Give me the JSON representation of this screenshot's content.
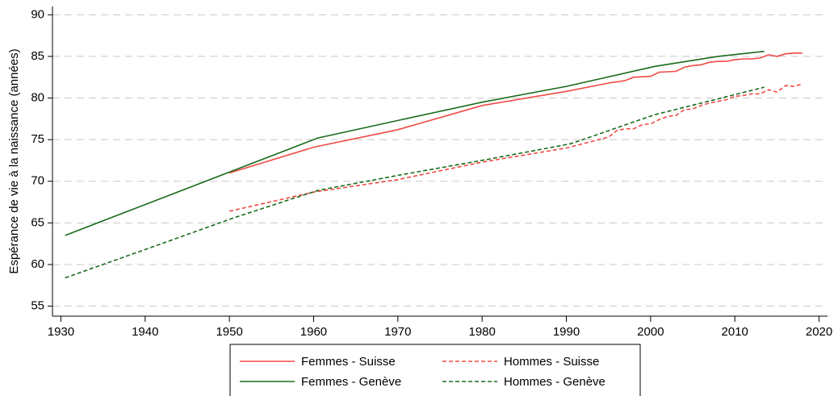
{
  "chart_data": {
    "type": "line",
    "y_label": "Espérance de vie à la naissance (années)",
    "xlim": [
      1929,
      2021
    ],
    "xticks": [
      1930,
      1940,
      1950,
      1960,
      1970,
      1980,
      1990,
      2000,
      2010,
      2020
    ],
    "ylim": [
      53.8,
      91
    ],
    "yticks": [
      55,
      60,
      65,
      70,
      75,
      80,
      85,
      90
    ],
    "grid": true,
    "legend": "bottom",
    "series": [
      {
        "name": "Femmes - Suisse",
        "color": "#f04a45",
        "dashed": false,
        "x": [
          1950,
          1960,
          1970,
          1980,
          1990,
          1995,
          1997,
          1998,
          2000,
          2001,
          2003,
          2004,
          2005,
          2006,
          2007,
          2008,
          2009,
          2010,
          2011,
          2012,
          2013,
          2014,
          2015,
          2016,
          2017,
          2018
        ],
        "values": [
          71.0,
          74.1,
          76.2,
          79.1,
          80.8,
          81.8,
          82.1,
          82.5,
          82.6,
          83.1,
          83.2,
          83.7,
          83.9,
          84.0,
          84.3,
          84.4,
          84.4,
          84.6,
          84.7,
          84.7,
          84.8,
          85.2,
          85.0,
          85.3,
          85.4,
          85.4
        ]
      },
      {
        "name": "Hommes - Suisse",
        "color": "#f04a45",
        "dashed": true,
        "x": [
          1950,
          1960,
          1970,
          1980,
          1990,
          1995,
          1996,
          1997,
          1998,
          1999,
          2000,
          2001,
          2002,
          2003,
          2004,
          2005,
          2006,
          2007,
          2008,
          2009,
          2010,
          2011,
          2012,
          2013,
          2014,
          2015,
          2016,
          2017,
          2018
        ],
        "values": [
          66.4,
          68.7,
          70.2,
          72.3,
          74.0,
          75.3,
          76.1,
          76.3,
          76.3,
          76.8,
          76.9,
          77.4,
          77.8,
          77.9,
          78.6,
          78.7,
          79.1,
          79.4,
          79.6,
          79.8,
          80.2,
          80.3,
          80.5,
          80.5,
          81.0,
          80.7,
          81.5,
          81.4,
          81.7
        ]
      },
      {
        "name": "Femmes - Genève",
        "color": "#1b6b1b",
        "dashed": false,
        "x": [
          1930.5,
          1960.5,
          1970,
          1980,
          1990,
          2000.5,
          2008,
          2013.5
        ],
        "values": [
          63.5,
          75.2,
          77.3,
          79.5,
          81.4,
          83.8,
          85.0,
          85.6
        ]
      },
      {
        "name": "Hommes - Genève",
        "color": "#1b6b1b",
        "dashed": true,
        "x": [
          1930.5,
          1940,
          1950.5,
          1960.5,
          1970.5,
          1980.5,
          1990.5,
          2000.5,
          2008,
          2013.5
        ],
        "values": [
          58.4,
          61.8,
          65.6,
          68.9,
          70.8,
          72.6,
          74.5,
          78.0,
          79.9,
          81.3
        ]
      }
    ]
  }
}
